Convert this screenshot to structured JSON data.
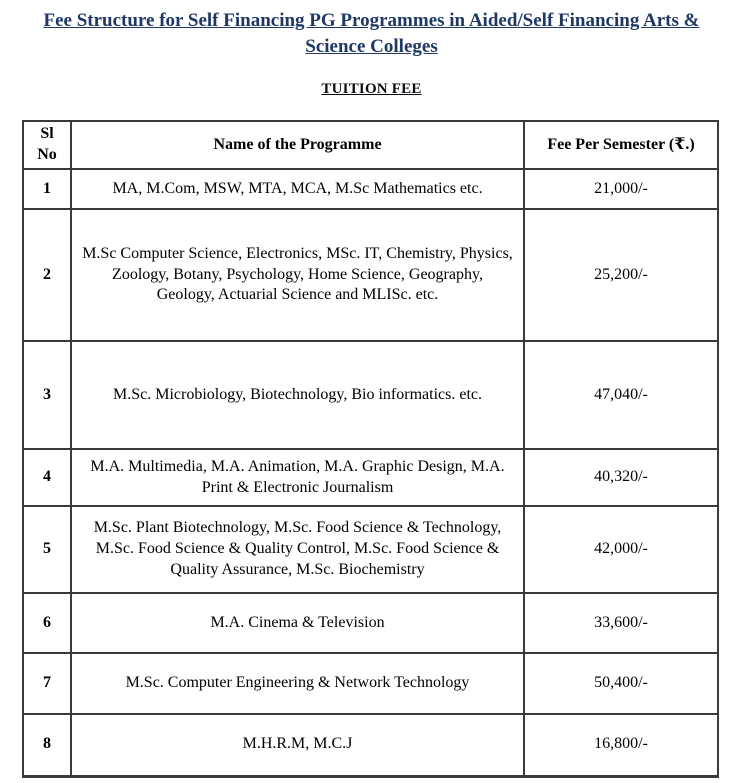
{
  "document": {
    "title": "Fee Structure for Self Financing PG Programmes in Aided/Self Financing Arts &\nScience Colleges",
    "section_heading": "TUITION FEE"
  },
  "colors": {
    "title_navy": "#1F3864",
    "body_text": "#000000",
    "table_border": "#3a3a3a"
  },
  "table": {
    "headers": [
      "Sl No",
      "Name of the Programme",
      "Fee Per Semester (₹.)"
    ],
    "rows": [
      {
        "sl": "1",
        "name": "MA, M.Com, MSW, MTA, MCA, M.Sc Mathematics etc.",
        "fee": "21,000/-"
      },
      {
        "sl": "2",
        "name": "M.Sc Computer Science, Electronics, MSc. IT, Chemistry, Physics, Zoology, Botany, Psychology, Home Science, Geography, Geology, Actuarial Science and MLISc. etc.",
        "fee": "25,200/-"
      },
      {
        "sl": "3",
        "name": "M.Sc. Microbiology, Biotechnology, Bio informatics. etc.",
        "fee": "47,040/-"
      },
      {
        "sl": "4",
        "name": "M.A. Multimedia, M.A. Animation, M.A. Graphic Design, M.A. Print & Electronic Journalism",
        "fee": "40,320/-"
      },
      {
        "sl": "5",
        "name": "M.Sc. Plant Biotechnology, M.Sc. Food Science & Technology, M.Sc. Food Science & Quality Control, M.Sc. Food Science & Quality Assurance, M.Sc. Biochemistry",
        "fee": "42,000/-"
      },
      {
        "sl": "6",
        "name": "M.A. Cinema & Television",
        "fee": "33,600/-"
      },
      {
        "sl": "7",
        "name": "M.Sc. Computer Engineering & Network Technology",
        "fee": "50,400/-"
      },
      {
        "sl": "8",
        "name": "M.H.R.M, M.C.J",
        "fee": "16,800/-"
      }
    ]
  }
}
